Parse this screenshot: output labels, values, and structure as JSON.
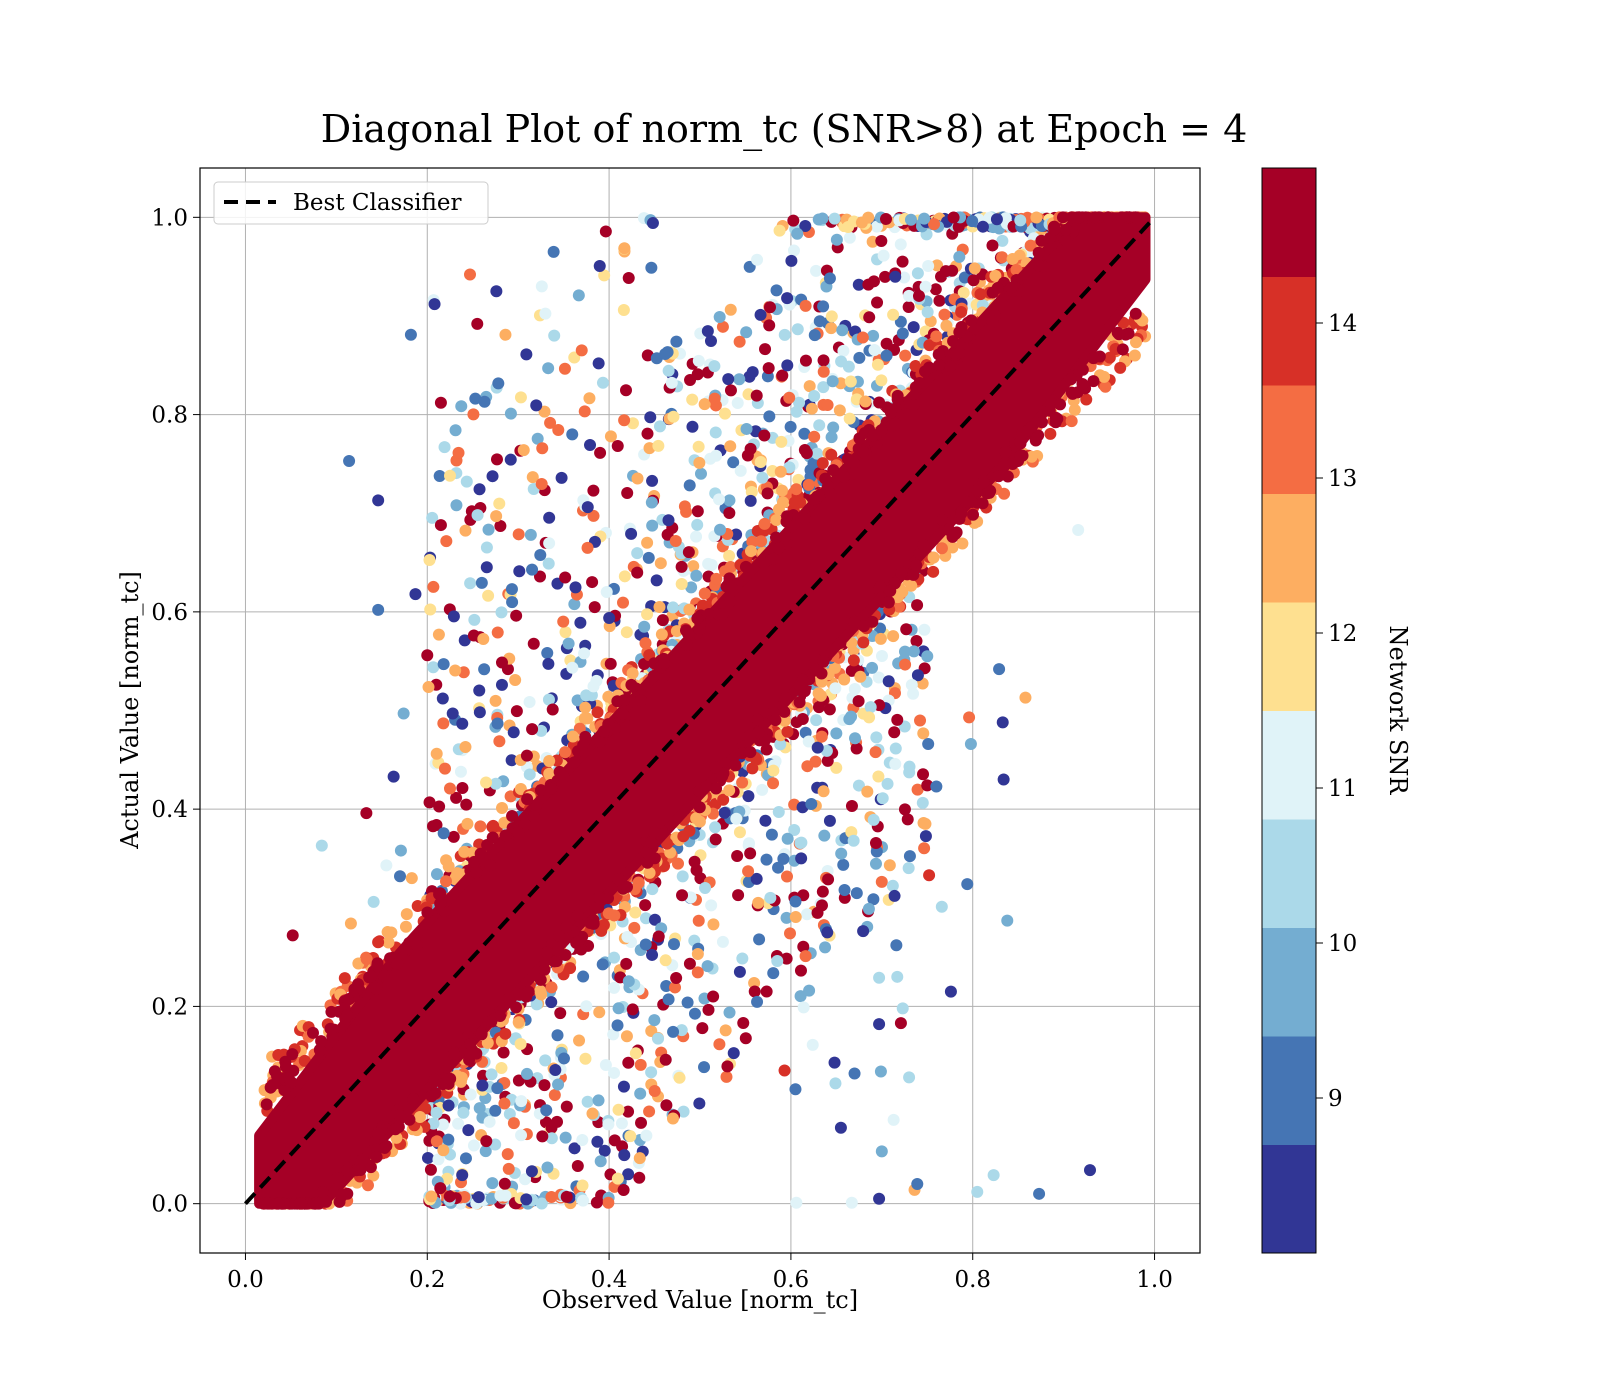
{
  "chart_data": {
    "type": "scatter",
    "title": "Diagonal Plot of norm_tc (SNR>8) at Epoch = 4",
    "xlabel": "Observed Value [norm_tc]",
    "ylabel": "Actual Value [norm_tc]",
    "xlim": [
      -0.05,
      1.05
    ],
    "ylim": [
      -0.05,
      1.05
    ],
    "xticks": [
      "0.0",
      "0.2",
      "0.4",
      "0.6",
      "0.8",
      "1.0"
    ],
    "yticks": [
      "0.0",
      "0.2",
      "0.4",
      "0.6",
      "0.8",
      "1.0"
    ],
    "grid": true,
    "legend": {
      "placement": "upper-left",
      "entries": [
        "Best Classifier"
      ]
    },
    "reference_line": {
      "name": "Best Classifier",
      "x": [
        0.0,
        1.0
      ],
      "y": [
        0.0,
        1.0
      ],
      "style": "dashed",
      "color": "#000000"
    },
    "colorbar": {
      "label": "Network SNR",
      "range": [
        8.0,
        15.0
      ],
      "ticks": [
        "9",
        "10",
        "11",
        "12",
        "13",
        "14"
      ],
      "bins": 10,
      "colors": [
        "#313695",
        "#4575b4",
        "#74add1",
        "#abd9e9",
        "#e0f3f8",
        "#fee090",
        "#fdae61",
        "#f46d43",
        "#d73027",
        "#a50026"
      ]
    },
    "dense_band": {
      "center": "y = x",
      "half_width": 0.085,
      "color": "#a50026"
    },
    "series": [
      {
        "values_note": "outlier points (x, y, snr)",
        "points": [
          [
            0.114,
            0.753,
            9.2
          ],
          [
            0.146,
            0.713,
            8.6
          ],
          [
            0.146,
            0.602,
            8.8
          ],
          [
            0.084,
            0.363,
            10.5
          ],
          [
            0.052,
            0.272,
            14.8
          ],
          [
            0.133,
            0.396,
            14.6
          ],
          [
            0.163,
            0.433,
            8.4
          ],
          [
            0.182,
            0.881,
            9.0
          ],
          [
            0.207,
            0.916,
            11.2
          ],
          [
            0.208,
            0.912,
            8.4
          ],
          [
            0.215,
            0.812,
            14.8
          ],
          [
            0.219,
            0.767,
            10.3
          ],
          [
            0.225,
            0.738,
            12.2
          ],
          [
            0.215,
            0.688,
            14.9
          ],
          [
            0.247,
            0.942,
            13.5
          ],
          [
            0.255,
            0.892,
            14.8
          ],
          [
            0.263,
            0.813,
            9.1
          ],
          [
            0.276,
            0.925,
            8.6
          ],
          [
            0.286,
            0.881,
            12.6
          ],
          [
            0.292,
            0.801,
            9.8
          ],
          [
            0.309,
            0.861,
            8.7
          ],
          [
            0.339,
            0.965,
            9.0
          ],
          [
            0.326,
            0.93,
            11.0
          ],
          [
            0.218,
            0.547,
            9.2
          ],
          [
            0.228,
            0.497,
            8.6
          ],
          [
            0.242,
            0.463,
            12.5
          ],
          [
            0.2,
            0.556,
            14.7
          ],
          [
            0.187,
            0.618,
            8.5
          ],
          [
            0.174,
            0.497,
            9.4
          ],
          [
            0.171,
            0.358,
            10.1
          ],
          [
            0.17,
            0.332,
            8.9
          ],
          [
            0.183,
            0.33,
            12.8
          ],
          [
            0.155,
            0.343,
            11.4
          ],
          [
            0.141,
            0.306,
            10.6
          ],
          [
            0.116,
            0.284,
            12.4
          ],
          [
            0.916,
            0.683,
            10.8
          ],
          [
            0.858,
            0.513,
            12.3
          ],
          [
            0.829,
            0.542,
            9.3
          ],
          [
            0.833,
            0.488,
            8.5
          ],
          [
            0.834,
            0.43,
            8.2
          ],
          [
            0.796,
            0.493,
            13.4
          ],
          [
            0.798,
            0.466,
            10.1
          ],
          [
            0.76,
            0.423,
            9.2
          ],
          [
            0.751,
            0.466,
            9.1
          ],
          [
            0.748,
            0.385,
            12.8
          ],
          [
            0.752,
            0.333,
            14.0
          ],
          [
            0.766,
            0.301,
            10.5
          ],
          [
            0.794,
            0.324,
            9.0
          ],
          [
            0.838,
            0.287,
            9.4
          ],
          [
            0.776,
            0.215,
            8.5
          ],
          [
            0.75,
            0.555,
            9.6
          ],
          [
            0.733,
            0.526,
            11.0
          ],
          [
            0.686,
            0.493,
            11.9
          ],
          [
            0.701,
            0.411,
            10.2
          ],
          [
            0.714,
            0.312,
            8.5
          ],
          [
            0.716,
            0.262,
            8.8
          ],
          [
            0.717,
            0.23,
            10.4
          ],
          [
            0.697,
            0.229,
            10.2
          ],
          [
            0.723,
            0.198,
            10.6
          ],
          [
            0.73,
            0.128,
            10.5
          ],
          [
            0.721,
            0.183,
            14.9
          ],
          [
            0.697,
            0.182,
            8.7
          ],
          [
            0.699,
            0.134,
            9.6
          ],
          [
            0.713,
            0.085,
            11.3
          ],
          [
            0.7,
            0.053,
            9.8
          ],
          [
            0.667,
            0.001,
            11.4
          ],
          [
            0.697,
            0.005,
            8.6
          ],
          [
            0.736,
            0.014,
            12.8
          ],
          [
            0.739,
            0.02,
            9.1
          ],
          [
            0.805,
            0.012,
            10.3
          ],
          [
            0.823,
            0.029,
            10.3
          ],
          [
            0.873,
            0.01,
            9.1
          ],
          [
            0.929,
            0.034,
            8.4
          ],
          [
            0.606,
            0.001,
            11.0
          ],
          [
            0.649,
            0.122,
            10.4
          ],
          [
            0.605,
            0.116,
            9.2
          ],
          [
            0.593,
            0.135,
            14.2
          ],
          [
            0.648,
            0.143,
            8.7
          ],
          [
            0.67,
            0.132,
            9.3
          ],
          [
            0.655,
            0.077,
            8.2
          ],
          [
            0.624,
            0.161,
            11.2
          ],
          [
            0.614,
            0.199,
            10.8
          ],
          [
            0.599,
            0.274,
            13.0
          ],
          [
            0.565,
            0.268,
            9.2
          ],
          [
            0.585,
            0.246,
            10.4
          ],
          [
            0.564,
            0.305,
            12.7
          ],
          [
            0.62,
            0.216,
            9.8
          ],
          [
            0.64,
            0.275,
            8.7
          ],
          [
            0.659,
            0.318,
            9.3
          ],
          [
            0.669,
            0.368,
            10.6
          ]
        ]
      }
    ]
  }
}
